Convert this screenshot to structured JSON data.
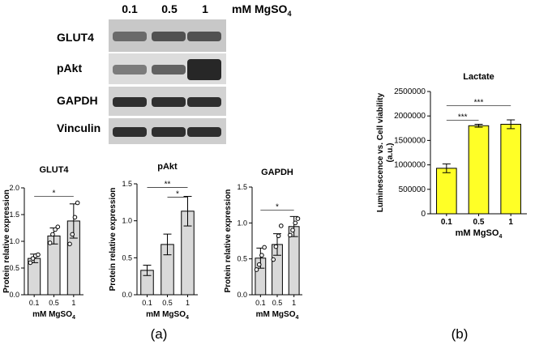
{
  "figure": {
    "panel_labels": [
      "(a)",
      "(b)"
    ]
  },
  "western_blot": {
    "concentrations": [
      "0.1",
      "0.5",
      "1"
    ],
    "concentration_unit": "mM MgSO",
    "concentration_unit_sub": "4",
    "rows": [
      {
        "label": "GLUT4",
        "intensity": [
          0.55,
          0.7,
          0.7
        ],
        "background": "#c8c8c8"
      },
      {
        "label": "pAkt",
        "intensity": [
          0.45,
          0.6,
          0.95
        ],
        "background": "#dcdcdc"
      },
      {
        "label": "GAPDH",
        "intensity": [
          0.9,
          0.9,
          0.9
        ],
        "background": "#d2d2d2"
      },
      {
        "label": "Vinculin",
        "intensity": [
          0.9,
          0.9,
          0.9
        ],
        "background": "#cecece"
      }
    ]
  },
  "chart_data": [
    {
      "type": "bar",
      "title": "GLUT4",
      "categories": [
        "0.1",
        "0.5",
        "1"
      ],
      "values": [
        0.68,
        1.1,
        1.38
      ],
      "errors": [
        0.08,
        0.15,
        0.32
      ],
      "points": [
        [
          0.6,
          0.68,
          0.73,
          0.75
        ],
        [
          0.97,
          1.13,
          1.22,
          1.27
        ],
        [
          0.95,
          1.13,
          1.45,
          1.72
        ]
      ],
      "xlabel": "mM MgSO",
      "xlabel_sub": "4",
      "ylabel": "Protein relative expression",
      "ylim": [
        0,
        2.0
      ],
      "yticks": [
        "0.0",
        "0.5",
        "1.0",
        "1.5",
        "2.0"
      ],
      "significance": [
        {
          "from": 0,
          "to": 2,
          "label": "*"
        }
      ],
      "bar_color": "#d9d9d9"
    },
    {
      "type": "bar",
      "title": "pAkt",
      "categories": [
        "0.1",
        "0.5",
        "1"
      ],
      "values": [
        0.33,
        0.68,
        1.13
      ],
      "errors": [
        0.07,
        0.14,
        0.2
      ],
      "points": [],
      "xlabel": "mM MgSO",
      "xlabel_sub": "4",
      "ylabel": "Protein relative expression",
      "ylim": [
        0,
        1.5
      ],
      "yticks": [
        "0.0",
        "0.5",
        "1.0",
        "1.5"
      ],
      "significance": [
        {
          "from": 0,
          "to": 2,
          "label": "**"
        },
        {
          "from": 1,
          "to": 2,
          "label": "*"
        }
      ],
      "bar_color": "#d9d9d9"
    },
    {
      "type": "bar",
      "title": "GAPDH",
      "categories": [
        "0.1",
        "0.5",
        "1"
      ],
      "values": [
        0.51,
        0.7,
        0.95
      ],
      "errors": [
        0.14,
        0.15,
        0.14
      ],
      "points": [
        [
          0.35,
          0.42,
          0.55,
          0.66
        ],
        [
          0.49,
          0.67,
          0.82,
          0.96
        ],
        [
          0.83,
          0.9,
          1.0,
          1.06
        ]
      ],
      "xlabel": "mM MgSO",
      "xlabel_sub": "4",
      "ylabel": "Protein relative expression",
      "ylim": [
        0,
        1.5
      ],
      "yticks": [
        "0.0",
        "0.5",
        "1.0",
        "1.5"
      ],
      "significance": [
        {
          "from": 0,
          "to": 2,
          "label": "*"
        }
      ],
      "bar_color": "#d9d9d9"
    },
    {
      "type": "bar",
      "title": "Lactate",
      "categories": [
        "0.1",
        "0.5",
        "1"
      ],
      "values": [
        930000,
        1800000,
        1830000
      ],
      "errors": [
        90000,
        30000,
        90000
      ],
      "points": [],
      "xlabel": "mM MgSO",
      "xlabel_sub": "4",
      "ylabel_lines": [
        "Luminescence vs. Cell viability",
        "(a.u.)"
      ],
      "ylim": [
        0,
        2500000
      ],
      "yticks": [
        "0",
        "500000",
        "1000000",
        "1500000",
        "2000000",
        "2500000"
      ],
      "significance": [
        {
          "from": 0,
          "to": 2,
          "label": "***"
        },
        {
          "from": 0,
          "to": 1,
          "label": "***"
        }
      ],
      "bar_color": "#ffff26"
    }
  ]
}
